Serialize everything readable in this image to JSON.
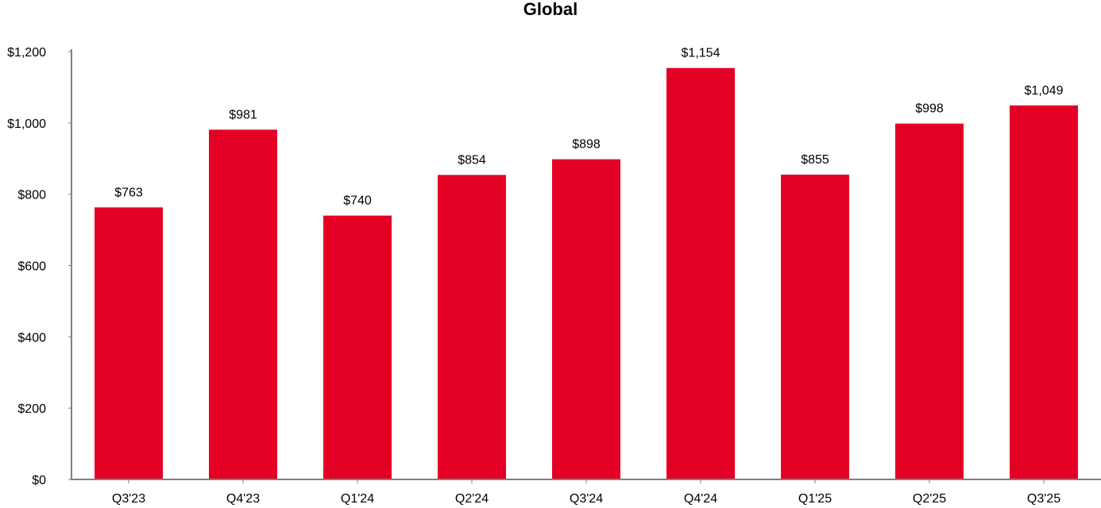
{
  "chart_data": {
    "type": "bar",
    "title": "Global",
    "xlabel": "",
    "ylabel": "",
    "categories": [
      "Q3'23",
      "Q4'23",
      "Q1'24",
      "Q2'24",
      "Q3'24",
      "Q4'24",
      "Q1'25",
      "Q2'25",
      "Q3'25"
    ],
    "values": [
      763,
      981,
      740,
      854,
      898,
      1154,
      855,
      998,
      1049
    ],
    "data_labels": [
      "$763",
      "$981",
      "$740",
      "$854",
      "$898",
      "$1,154",
      "$855",
      "$998",
      "$1,049"
    ],
    "ylim": [
      0,
      1200
    ],
    "y_ticks": [
      0,
      200,
      400,
      600,
      800,
      1000,
      1200
    ],
    "y_tick_labels": [
      "$0",
      "$200",
      "$400",
      "$600",
      "$800",
      "$1,000",
      "$1,200"
    ],
    "grid": false,
    "legend": "none",
    "colors": {
      "bar": "#E30024",
      "axis": "#808080",
      "text": "#000000"
    }
  }
}
